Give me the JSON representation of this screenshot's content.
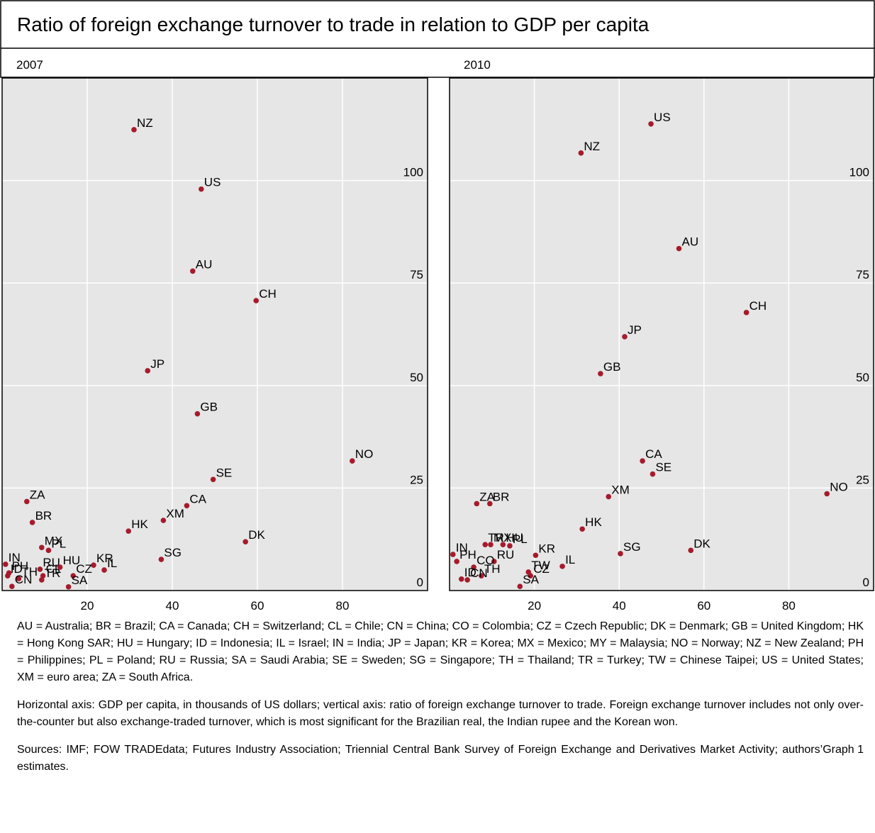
{
  "title": "Ratio of foreign exchange turnover to trade in relation to GDP per capita",
  "chart_data": [
    {
      "type": "scatter",
      "title": "2007",
      "color": "#a61b2b",
      "grid": true,
      "xlim": [
        0,
        100
      ],
      "ylim": [
        0,
        125
      ],
      "xticks": [
        20,
        40,
        60,
        80
      ],
      "yticks": [
        0,
        25,
        50,
        75,
        100
      ],
      "labels": [
        "NZ",
        "US",
        "AU",
        "CH",
        "JP",
        "GB",
        "NO",
        "SE",
        "ZA",
        "CA",
        "XM",
        "BR",
        "HK",
        "DK",
        "MX",
        "PL",
        "IN",
        "PH",
        "SG",
        "RU",
        "KR",
        "HU",
        "ID",
        "TH",
        "IL",
        "CL",
        "CZ",
        "TR",
        "CN",
        "SA"
      ],
      "x": [
        31.0,
        46.8,
        44.8,
        59.7,
        34.2,
        45.9,
        82.3,
        49.6,
        5.8,
        43.4,
        37.9,
        7.1,
        29.7,
        57.2,
        9.3,
        10.9,
        0.8,
        1.6,
        37.4,
        8.9,
        21.5,
        13.6,
        1.3,
        3.9,
        24.0,
        9.6,
        16.7,
        9.3,
        2.3,
        15.6
      ],
      "y": [
        112.4,
        97.9,
        77.9,
        70.7,
        53.6,
        43.1,
        31.6,
        27.1,
        21.7,
        20.7,
        17.1,
        16.6,
        14.5,
        11.9,
        10.5,
        9.8,
        6.4,
        4.3,
        7.6,
        5.2,
        6.2,
        5.7,
        3.6,
        2.9,
        5.0,
        3.6,
        3.6,
        2.6,
        1.0,
        0.9
      ]
    },
    {
      "type": "scatter",
      "title": "2010",
      "color": "#a61b2b",
      "grid": true,
      "xlim": [
        0,
        100
      ],
      "ylim": [
        0,
        125
      ],
      "xticks": [
        20,
        40,
        60,
        80
      ],
      "yticks": [
        0,
        25,
        50,
        75,
        100
      ],
      "labels": [
        "US",
        "NZ",
        "AU",
        "CH",
        "JP",
        "GB",
        "CA",
        "SE",
        "NO",
        "XM",
        "ZA",
        "BR",
        "HK",
        "TR",
        "MX",
        "PL",
        "HU",
        "DK",
        "SG",
        "KR",
        "IN",
        "RU",
        "PH",
        "CO",
        "IL",
        "TW",
        "CZ",
        "TH",
        "ID",
        "CN",
        "SA"
      ],
      "x": [
        47.5,
        31.0,
        54.1,
        70.0,
        41.3,
        35.6,
        45.5,
        47.9,
        89.0,
        37.5,
        6.4,
        9.5,
        31.3,
        8.4,
        9.7,
        14.2,
        12.6,
        56.9,
        40.3,
        20.3,
        0.8,
        10.5,
        1.7,
        5.7,
        26.6,
        18.6,
        19.1,
        7.5,
        2.8,
        4.2,
        16.6
      ],
      "y": [
        113.8,
        106.7,
        83.4,
        67.8,
        61.9,
        52.9,
        31.6,
        28.4,
        23.6,
        22.9,
        21.2,
        21.2,
        15.0,
        11.2,
        11.2,
        10.9,
        11.2,
        9.8,
        9.0,
        8.6,
        8.8,
        7.1,
        7.1,
        5.7,
        5.9,
        4.5,
        3.6,
        3.6,
        2.8,
        2.6,
        1.0
      ]
    }
  ],
  "notes": [
    "AU = Australia; BR = Brazil; CA = Canada; CH = Switzerland; CL = Chile; CN = China; CO = Colombia; CZ = Czech Republic; DK = Denmark; GB = United Kingdom; HK = Hong Kong SAR; HU = Hungary; ID = Indonesia; IL = Israel; IN = India; JP = Japan; KR = Korea; MX = Mexico; MY = Malaysia; NO = Norway; NZ = New Zealand; PH = Philippines; PL = Poland; RU = Russia; SA = Saudi Arabia; SE = Sweden; SG = Singapore; TH = Thailand; TR = Turkey; TW = Chinese Taipei; US = United States; XM = euro area; ZA = South Africa.",
    "Horizontal axis: GDP per capita, in thousands of US dollars; vertical axis: ratio of foreign exchange turnover to trade. Foreign exchange turnover includes not only over-the-counter but also exchange-traded turnover, which is most significant for the Brazilian real, the Indian rupee and the Korean won.",
    "Sources: IMF; FOW TRADEdata; Futures Industry Association; Triennial Central Bank Survey of Foreign Exchange and Derivatives Market Activity; authors’ estimates."
  ],
  "graph_label": "Graph 1"
}
